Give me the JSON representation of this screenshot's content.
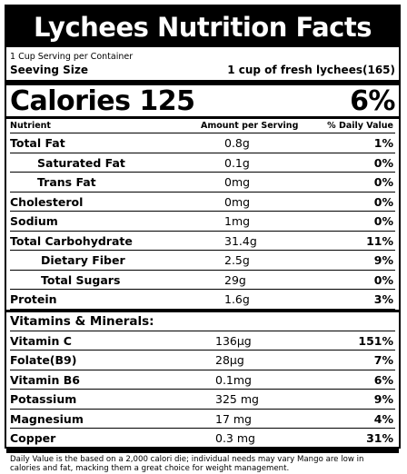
{
  "title": "Lychees Nutrition Facts",
  "servings_per_container": "1 Cup Serving per Container",
  "serving_size_label": "Seeving Size",
  "serving_size_value": "1 cup of fresh lychees(165)",
  "calories_label": "Calories 125",
  "calories_dv": "6%",
  "headers": {
    "nutrient": "Nutrient",
    "amount": "Amount per Serving",
    "daily_value": "% Daily Value"
  },
  "nutrients": [
    {
      "name": "Total Fat",
      "amount": "0.8g",
      "dv": "1%"
    },
    {
      "name": "Saturated Fat",
      "amount": "0.1g",
      "dv": "0%"
    },
    {
      "name": "Trans Fat",
      "amount": "0mg",
      "dv": "0%"
    },
    {
      "name": "Cholesterol",
      "amount": "0mg",
      "dv": "0%"
    },
    {
      "name": "Sodium",
      "amount": "1mg",
      "dv": "0%"
    },
    {
      "name": "Total Carbohydrate",
      "amount": "31.4g",
      "dv": "11%"
    },
    {
      "name": "Dietary Fiber",
      "amount": "2.5g",
      "dv": "9%"
    },
    {
      "name": "Total Sugars",
      "amount": "29g",
      "dv": "0%"
    },
    {
      "name": "Protein",
      "amount": "1.6g",
      "dv": "3%"
    }
  ],
  "vitamins_title": "Vitamins & Minerals:",
  "vitamins": [
    {
      "name": "Vitamin C",
      "amount": "136µg",
      "dv": "151%"
    },
    {
      "name": "Folate(B9)",
      "amount": "28µg",
      "dv": "7%"
    },
    {
      "name": "Vitamin B6",
      "amount": "0.1mg",
      "dv": "6%"
    },
    {
      "name": "Potassium",
      "amount": "325 mg",
      "dv": "9%"
    },
    {
      "name": "Magnesium",
      "amount": "17 mg",
      "dv": "4%"
    },
    {
      "name": "Copper",
      "amount": "0.3 mg",
      "dv": "31%"
    }
  ],
  "footnote": "Daily Value is the based on a 2,000 calori die; individual needs may vary Mango are low in calories and fat, macking them a great choice for weight management."
}
